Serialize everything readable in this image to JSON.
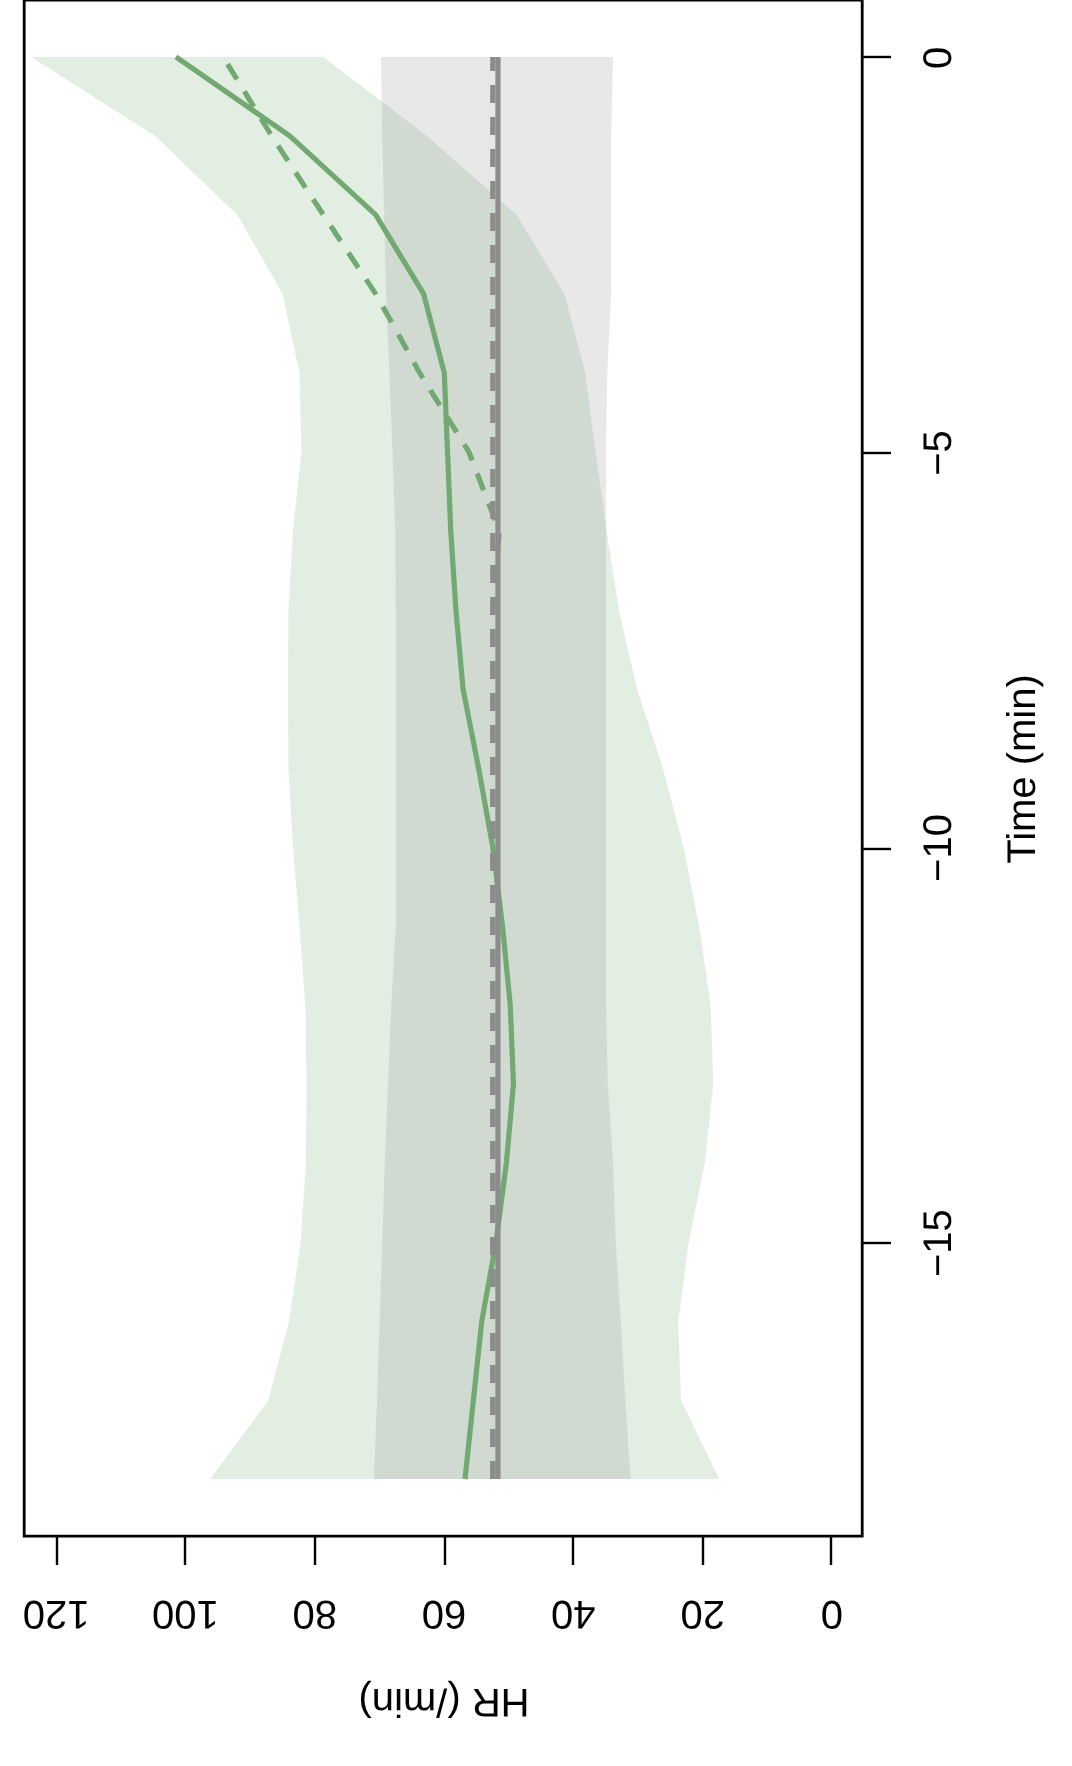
{
  "chart_data": {
    "type": "line",
    "orientation": "horizontal",
    "xlabel": "HR (/min)",
    "ylabel": "Time (min)",
    "x": [
      -18,
      -17,
      -16,
      -15,
      -14,
      -13,
      -12,
      -11,
      -10,
      -9,
      -8,
      -7,
      -6,
      -5,
      -4,
      -3,
      -2,
      -1,
      0
    ],
    "xlim": [
      124.8,
      -4.8
    ],
    "xticks": [
      0,
      20,
      40,
      60,
      80,
      100,
      120
    ],
    "ylim": [
      -18.72,
      0.72
    ],
    "yticks": [
      -15,
      -10,
      -5,
      0
    ],
    "series": [
      {
        "color": "#72a872",
        "line_style": "solid",
        "values": [
          56.6,
          55.3,
          54,
          51.8,
          50.2,
          49.1,
          49.6,
          50.8,
          52.3,
          54.5,
          56.9,
          58,
          58.8,
          59.3,
          59.8,
          63,
          70.4,
          83.7,
          101.3
        ],
        "lower": [
          17.3,
          23.2,
          23.6,
          22,
          19.5,
          18.2,
          18.6,
          20.4,
          22.8,
          26,
          30,
          32.8,
          34.7,
          36.4,
          38,
          41.2,
          48.6,
          62.5,
          78.5
        ],
        "upper": [
          96,
          87,
          83.8,
          82,
          81.2,
          81.1,
          81.3,
          82.2,
          83.2,
          83.9,
          84,
          83.9,
          83.2,
          81.9,
          82.2,
          84.8,
          91.8,
          104.5,
          123.7
        ]
      },
      {
        "color": "#72a872",
        "line_style": "dashed",
        "values": [
          52.3,
          52.3,
          52.3,
          52.3,
          52.3,
          52.3,
          52.3,
          52.3,
          52.3,
          52.3,
          52.3,
          52.3,
          51.3,
          56,
          63.6,
          70.4,
          78.5,
          86.5,
          94
        ]
      },
      {
        "color": "#8c8c8c",
        "line_style": "solid",
        "values": [
          51.5,
          51.5,
          51.5,
          51.5,
          51.5,
          51.5,
          51.5,
          51.5,
          51.5,
          51.5,
          51.5,
          51.5,
          51.5,
          51.5,
          51.5,
          51.5,
          51.5,
          51.5,
          51.5
        ],
        "lower": [
          31,
          31.8,
          32.5,
          33.3,
          33.7,
          34.5,
          34.8,
          34.8,
          34.8,
          34.8,
          34.8,
          34.8,
          34.8,
          34.8,
          34.6,
          34,
          34,
          34,
          33.7
        ],
        "upper": [
          70.7,
          70.2,
          69.8,
          69.4,
          69,
          68.5,
          68,
          67.3,
          67.3,
          67.3,
          67.3,
          67.3,
          67.4,
          67.8,
          68.3,
          68.8,
          69.1,
          69.4,
          69.6
        ]
      },
      {
        "color": "#8c8c8c",
        "line_style": "dashed",
        "values": [
          52.3,
          52.3,
          52.3,
          52.3,
          52.3,
          52.3,
          52.3,
          52.3,
          52.3,
          52.3,
          52.3,
          52.3,
          52.3,
          52.3,
          52.3,
          52.3,
          52.3,
          52.3,
          52.3
        ]
      }
    ]
  }
}
